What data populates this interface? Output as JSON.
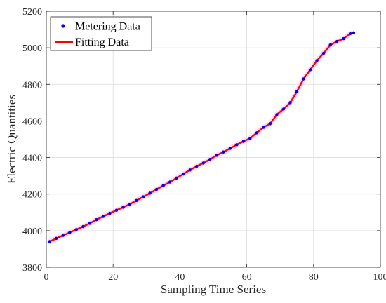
{
  "chart_data": {
    "type": "line",
    "xlabel": "Sampling Time Series",
    "ylabel": "Electric Quantities",
    "xlim": [
      0,
      100
    ],
    "ylim": [
      3800,
      5200
    ],
    "xticks": [
      0,
      20,
      40,
      60,
      80,
      100
    ],
    "yticks": [
      3800,
      4000,
      4200,
      4400,
      4600,
      4800,
      5000,
      5200
    ],
    "grid": true,
    "legend": "top-left",
    "series": [
      {
        "name": "Metering Data",
        "style": "markers",
        "color": "#0000ff",
        "x": [
          1,
          3,
          5,
          7,
          9,
          11,
          13,
          15,
          17,
          19,
          21,
          23,
          25,
          27,
          29,
          31,
          33,
          35,
          37,
          39,
          41,
          43,
          45,
          47,
          49,
          51,
          53,
          55,
          57,
          59,
          61,
          63,
          65,
          67,
          69,
          71,
          73,
          75,
          77,
          79,
          81,
          83,
          85,
          87,
          89,
          91,
          92
        ],
        "y": [
          3940,
          3958,
          3974,
          3990,
          4006,
          4022,
          4040,
          4060,
          4078,
          4095,
          4112,
          4128,
          4145,
          4165,
          4185,
          4205,
          4226,
          4246,
          4266,
          4288,
          4310,
          4332,
          4352,
          4370,
          4390,
          4412,
          4430,
          4450,
          4470,
          4488,
          4505,
          4535,
          4565,
          4585,
          4635,
          4665,
          4700,
          4760,
          4830,
          4880,
          4930,
          4970,
          5015,
          5035,
          5050,
          5078,
          5082
        ]
      },
      {
        "name": "Fitting Data",
        "style": "line",
        "color": "#ff0000",
        "x": [
          1,
          3,
          5,
          7,
          9,
          11,
          13,
          15,
          17,
          19,
          21,
          23,
          25,
          27,
          29,
          31,
          33,
          35,
          37,
          39,
          41,
          43,
          45,
          47,
          49,
          51,
          53,
          55,
          57,
          59,
          61,
          63,
          65,
          67,
          69,
          71,
          73,
          75,
          77,
          79,
          81,
          83,
          85,
          87,
          89,
          91
        ],
        "y": [
          3940,
          3958,
          3974,
          3990,
          4006,
          4022,
          4040,
          4060,
          4078,
          4095,
          4112,
          4128,
          4145,
          4165,
          4185,
          4205,
          4226,
          4246,
          4266,
          4288,
          4310,
          4332,
          4352,
          4370,
          4390,
          4412,
          4430,
          4450,
          4470,
          4488,
          4505,
          4535,
          4565,
          4585,
          4635,
          4665,
          4700,
          4760,
          4830,
          4880,
          4930,
          4970,
          5015,
          5035,
          5050,
          5078
        ]
      }
    ]
  }
}
